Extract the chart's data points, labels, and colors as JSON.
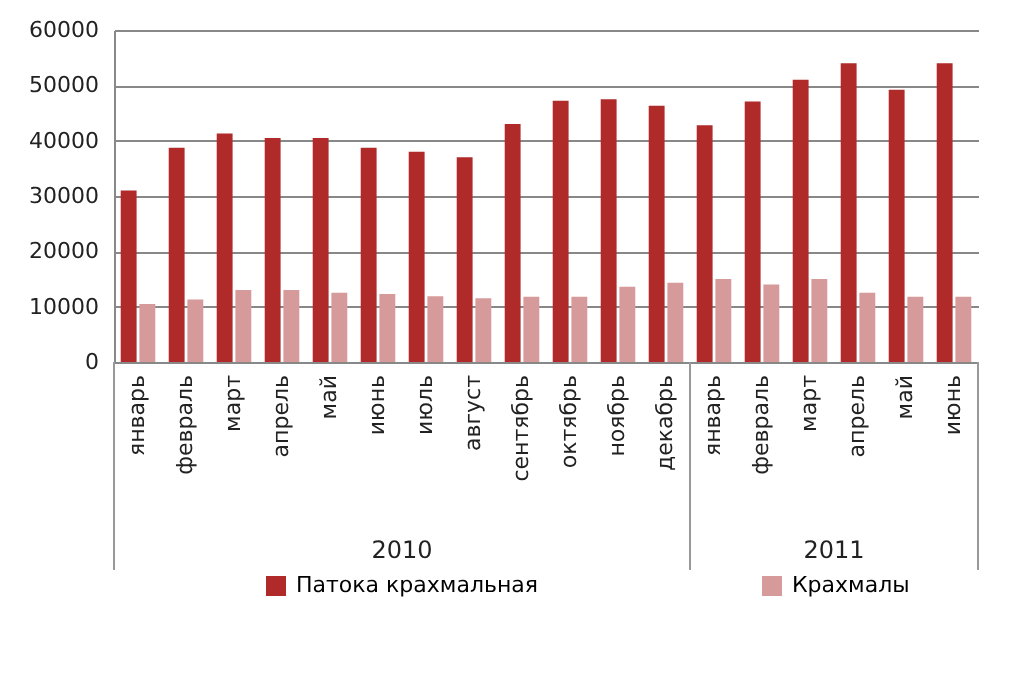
{
  "chart_data": {
    "type": "bar",
    "categories": [
      "январь",
      "февраль",
      "март",
      "апрель",
      "май",
      "июнь",
      "июль",
      "август",
      "сентябрь",
      "октябрь",
      "ноябрь",
      "декабрь",
      "январь",
      "февраль",
      "март",
      "апрель",
      "май",
      "июнь"
    ],
    "series": [
      {
        "name": "Патока крахмальная",
        "color": "#b02a2a",
        "values": [
          31000,
          38700,
          41300,
          40500,
          40500,
          38700,
          38000,
          37000,
          43000,
          47200,
          47500,
          46300,
          42800,
          47100,
          51000,
          54000,
          49200,
          54000
        ]
      },
      {
        "name": "Крахмалы",
        "color": "#d79a9a",
        "values": [
          10500,
          11300,
          13000,
          13000,
          12500,
          12300,
          11900,
          11500,
          11800,
          11800,
          13600,
          14300,
          15000,
          14000,
          15000,
          12500,
          11800,
          11800
        ]
      }
    ],
    "ylim": [
      0,
      60000
    ],
    "yticks": [
      0,
      10000,
      20000,
      30000,
      40000,
      50000,
      60000
    ],
    "grid": "y",
    "legend": "bottom",
    "annotations": [
      "2010",
      "2011"
    ]
  }
}
